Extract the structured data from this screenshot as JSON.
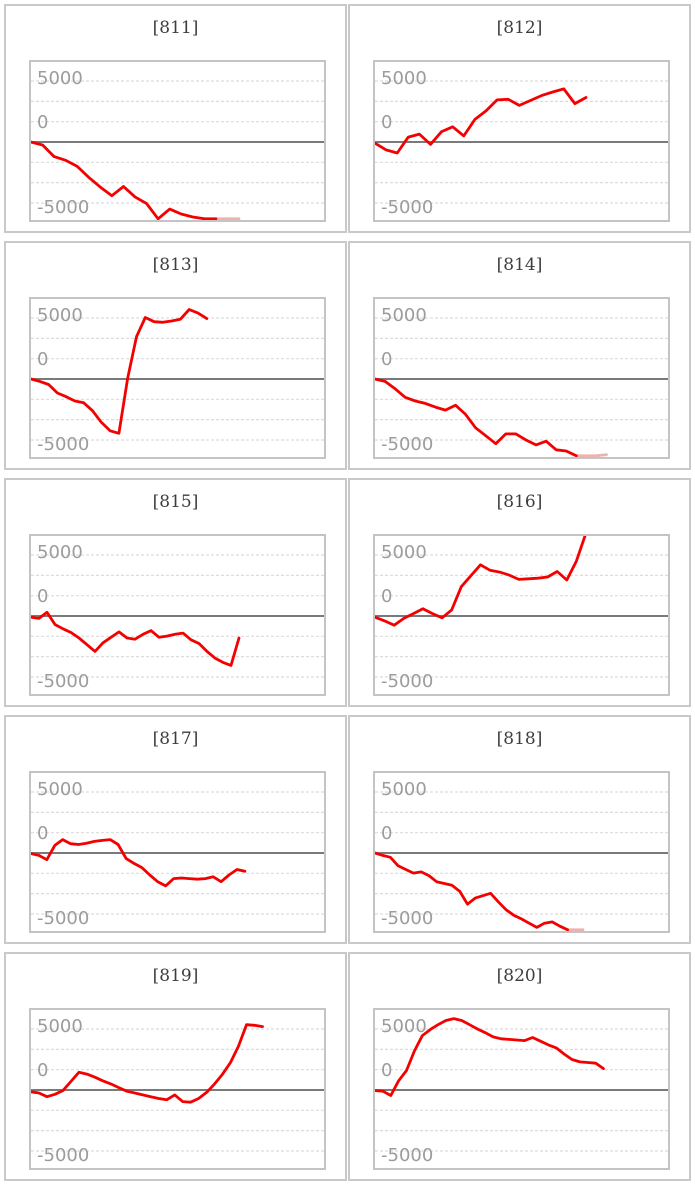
{
  "page": {
    "description": "Grid of 10 slump graphs for machines 811-820"
  },
  "chart_data": {
    "type": "line",
    "grid_on": true,
    "y_ticks": [
      "5000",
      "0",
      "-5000"
    ],
    "y_tick_values": [
      5000,
      0,
      -5000
    ],
    "ylim": [
      -6550,
      6700
    ],
    "minor_gridline_step": 1666.67,
    "legend": "none",
    "xlabel": "",
    "ylabel": "",
    "style": {
      "series_color": "#f40000",
      "clipped_color": "#edb2ae",
      "grid_color": "#dcdcdc",
      "zero_line_color": "#7a7a7a",
      "axis_label_color": "#9c9c9c",
      "title_color": "#3d3d3d",
      "cell_border_color": "#c9c9c9",
      "plot_border_color": "#c4c4c4"
    },
    "charts": [
      {
        "title": "[811]",
        "values": [
          0,
          -250,
          -1200,
          -1500,
          -2000,
          -2900,
          -3700,
          -4400,
          -3650,
          -4500,
          -5050,
          -6400,
          -5500,
          -5900,
          -6150,
          -6400,
          -6550,
          -6600,
          -6600
        ],
        "end_frac": 0.71,
        "clipped_tail_points": 2
      },
      {
        "title": "[812]",
        "values": [
          -100,
          -650,
          -900,
          400,
          650,
          -200,
          850,
          1250,
          500,
          1850,
          2550,
          3450,
          3500,
          3000,
          3400,
          3800,
          4100,
          4350,
          3150,
          3650
        ],
        "end_frac": 0.72,
        "clipped_tail_points": 0
      },
      {
        "title": "[813]",
        "values": [
          0,
          -200,
          -450,
          -1150,
          -1450,
          -1800,
          -1950,
          -2600,
          -3550,
          -4250,
          -4450,
          80,
          3470,
          5040,
          4700,
          4650,
          4750,
          4900,
          5700,
          5400,
          4950
        ],
        "end_frac": 0.6,
        "clipped_tail_points": 0
      },
      {
        "title": "[814]",
        "values": [
          0,
          -200,
          -800,
          -1500,
          -1800,
          -2000,
          -2300,
          -2550,
          -2150,
          -2900,
          -4000,
          -4650,
          -5300,
          -4500,
          -4500,
          -5000,
          -5400,
          -5100,
          -5800,
          -5900,
          -6400,
          -6550,
          -6500,
          -6200
        ],
        "end_frac": 0.79,
        "clipped_tail_points": 3
      },
      {
        "title": "[815]",
        "values": [
          -100,
          -200,
          300,
          -700,
          -1050,
          -1350,
          -1800,
          -2350,
          -2900,
          -2200,
          -1750,
          -1300,
          -1800,
          -1900,
          -1500,
          -1200,
          -1750,
          -1650,
          -1500,
          -1400,
          -1950,
          -2250,
          -2900,
          -3450,
          -3800,
          -4050,
          -1800
        ],
        "end_frac": 0.71,
        "clipped_tail_points": 0
      },
      {
        "title": "[816]",
        "values": [
          -100,
          -400,
          -750,
          -200,
          200,
          600,
          200,
          -150,
          500,
          2400,
          3300,
          4200,
          3750,
          3600,
          3350,
          3000,
          3050,
          3100,
          3200,
          3650,
          2950,
          4500,
          6800
        ],
        "end_frac": 0.72,
        "clipped_tail_points": 0
      },
      {
        "title": "[817]",
        "values": [
          -50,
          -200,
          -550,
          620,
          1100,
          760,
          700,
          800,
          950,
          1030,
          1100,
          700,
          -450,
          -850,
          -1200,
          -1800,
          -2350,
          -2700,
          -2100,
          -2050,
          -2100,
          -2150,
          -2100,
          -1950,
          -2350,
          -1800,
          -1350,
          -1500
        ],
        "end_frac": 0.73,
        "clipped_tail_points": 0
      },
      {
        "title": "[818]",
        "values": [
          0,
          -200,
          -350,
          -1050,
          -1350,
          -1650,
          -1550,
          -1850,
          -2350,
          -2500,
          -2650,
          -3150,
          -4200,
          -3700,
          -3500,
          -3300,
          -4000,
          -4650,
          -5100,
          -5400,
          -5750,
          -6100,
          -5750,
          -5650,
          -6000,
          -6300,
          -6500,
          -6550
        ],
        "end_frac": 0.71,
        "clipped_tail_points": 2
      },
      {
        "title": "[819]",
        "values": [
          -150,
          -250,
          -550,
          -350,
          -50,
          700,
          1450,
          1300,
          1050,
          750,
          500,
          200,
          -100,
          -250,
          -400,
          -550,
          -700,
          -800,
          -400,
          -950,
          -1000,
          -700,
          -200,
          500,
          1300,
          2250,
          3600,
          5350,
          5300,
          5200
        ],
        "end_frac": 0.79,
        "clipped_tail_points": 0
      },
      {
        "title": "[820]",
        "values": [
          -50,
          -100,
          -450,
          750,
          1600,
          3200,
          4450,
          4950,
          5350,
          5700,
          5850,
          5700,
          5350,
          5000,
          4700,
          4350,
          4200,
          4150,
          4100,
          4050,
          4300,
          4000,
          3700,
          3450,
          2950,
          2500,
          2300,
          2250,
          2200,
          1750
        ],
        "end_frac": 0.78,
        "clipped_tail_points": 0
      }
    ]
  }
}
